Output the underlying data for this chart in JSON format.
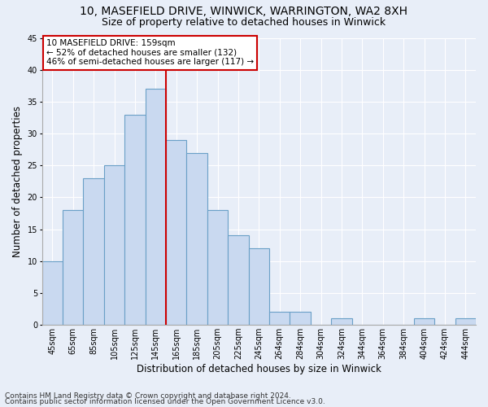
{
  "title1": "10, MASEFIELD DRIVE, WINWICK, WARRINGTON, WA2 8XH",
  "title2": "Size of property relative to detached houses in Winwick",
  "xlabel": "Distribution of detached houses by size in Winwick",
  "ylabel": "Number of detached properties",
  "footnote1": "Contains HM Land Registry data © Crown copyright and database right 2024.",
  "footnote2": "Contains public sector information licensed under the Open Government Licence v3.0.",
  "annotation_line1": "10 MASEFIELD DRIVE: 159sqm",
  "annotation_line2": "← 52% of detached houses are smaller (132)",
  "annotation_line3": "46% of semi-detached houses are larger (117) →",
  "bar_labels": [
    "45sqm",
    "65sqm",
    "85sqm",
    "105sqm",
    "125sqm",
    "145sqm",
    "165sqm",
    "185sqm",
    "205sqm",
    "225sqm",
    "245sqm",
    "264sqm",
    "284sqm",
    "304sqm",
    "324sqm",
    "344sqm",
    "364sqm",
    "384sqm",
    "404sqm",
    "424sqm",
    "444sqm"
  ],
  "bar_values": [
    10,
    18,
    23,
    25,
    33,
    37,
    29,
    27,
    18,
    14,
    12,
    2,
    2,
    0,
    1,
    0,
    0,
    0,
    1,
    0,
    1
  ],
  "bar_color": "#c9d9f0",
  "bar_edge_color": "#6aa0c7",
  "vline_x": 5.5,
  "ylim": [
    0,
    45
  ],
  "yticks": [
    0,
    5,
    10,
    15,
    20,
    25,
    30,
    35,
    40,
    45
  ],
  "bg_color": "#e8eef8",
  "plot_bg_color": "#e8eef8",
  "grid_color": "#ffffff",
  "annotation_box_edge": "#cc0000",
  "vline_color": "#cc0000",
  "title1_fontsize": 10,
  "title2_fontsize": 9,
  "xlabel_fontsize": 8.5,
  "ylabel_fontsize": 8.5,
  "tick_fontsize": 7,
  "annotation_fontsize": 7.5,
  "footnote_fontsize": 6.5
}
